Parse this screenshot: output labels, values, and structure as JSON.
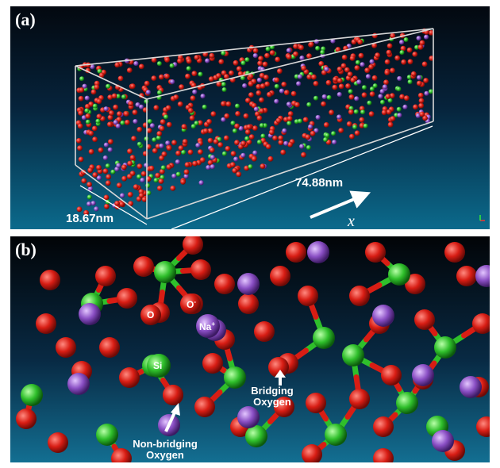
{
  "panel_a": {
    "tag": "(a)",
    "length": "74.88nm",
    "width": "18.67nm",
    "axis": "x"
  },
  "panel_b": {
    "tag": "(b)",
    "label_O": "O",
    "label_Ominus_base": "O",
    "label_Ominus_sup": "-",
    "label_Na_base": "Na",
    "label_Na_sup": "+",
    "label_Si": "Si",
    "bridging": "Bridging Oxygen",
    "nonbridging": "Non-bridging Oxygen"
  },
  "colors": {
    "oxygen": "#d81d14",
    "silicon": "#2fbf2b",
    "sodium": "#8a4fc4",
    "box": "#d8d8d8"
  }
}
